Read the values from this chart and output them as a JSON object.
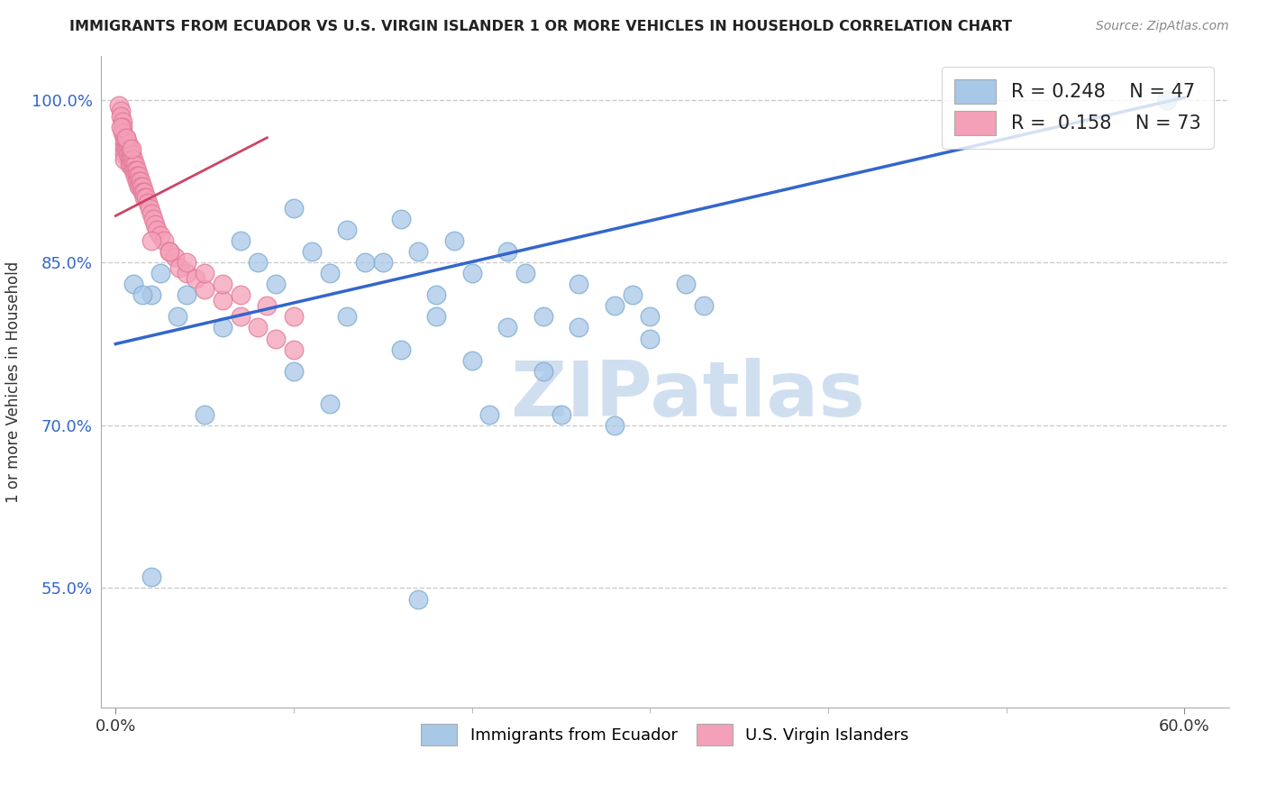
{
  "title": "IMMIGRANTS FROM ECUADOR VS U.S. VIRGIN ISLANDER 1 OR MORE VEHICLES IN HOUSEHOLD CORRELATION CHART",
  "source": "Source: ZipAtlas.com",
  "ylabel": "1 or more Vehicles in Household",
  "xlabel": "",
  "xlim_min": -0.008,
  "xlim_max": 0.625,
  "ylim_min": 0.44,
  "ylim_max": 1.04,
  "ytick_values": [
    0.55,
    0.7,
    0.85,
    1.0
  ],
  "ytick_labels": [
    "55.0%",
    "70.0%",
    "85.0%",
    "100.0%"
  ],
  "xtick_values": [
    0.0,
    0.6
  ],
  "xtick_labels": [
    "0.0%",
    "60.0%"
  ],
  "R_blue": 0.248,
  "N_blue": 47,
  "R_pink": 0.158,
  "N_pink": 73,
  "blue_dot_color": "#a8c8e8",
  "blue_dot_edge": "#7aaad0",
  "pink_dot_color": "#f4a0b8",
  "pink_dot_edge": "#e07898",
  "blue_line_color": "#3366cc",
  "pink_line_color": "#cc4466",
  "blue_line_x0": 0.0,
  "blue_line_y0": 0.775,
  "blue_line_x1": 0.6,
  "blue_line_y1": 1.002,
  "pink_line_x0": 0.0,
  "pink_line_y0": 0.893,
  "pink_line_x1": 0.085,
  "pink_line_y1": 0.965,
  "watermark_text": "ZIPatlas",
  "watermark_color": "#d0dff0",
  "legend_box_color": "#ccddee",
  "title_color": "#222222",
  "source_color": "#888888",
  "ylabel_color": "#333333",
  "ytick_color": "#3366cc",
  "xtick_color": "#333333",
  "blue_scatter_x": [
    0.01,
    0.02,
    0.025,
    0.015,
    0.04,
    0.035,
    0.07,
    0.1,
    0.13,
    0.16,
    0.19,
    0.22,
    0.08,
    0.11,
    0.14,
    0.17,
    0.2,
    0.23,
    0.09,
    0.12,
    0.15,
    0.18,
    0.26,
    0.29,
    0.32,
    0.28,
    0.24,
    0.3,
    0.33,
    0.06,
    0.13,
    0.18,
    0.22,
    0.26,
    0.3,
    0.1,
    0.16,
    0.2,
    0.24,
    0.05,
    0.12,
    0.21,
    0.25,
    0.28,
    0.02,
    0.17,
    0.59
  ],
  "blue_scatter_y": [
    0.83,
    0.82,
    0.84,
    0.82,
    0.82,
    0.8,
    0.87,
    0.9,
    0.88,
    0.89,
    0.87,
    0.86,
    0.85,
    0.86,
    0.85,
    0.86,
    0.84,
    0.84,
    0.83,
    0.84,
    0.85,
    0.82,
    0.83,
    0.82,
    0.83,
    0.81,
    0.8,
    0.8,
    0.81,
    0.79,
    0.8,
    0.8,
    0.79,
    0.79,
    0.78,
    0.75,
    0.77,
    0.76,
    0.75,
    0.71,
    0.72,
    0.71,
    0.71,
    0.7,
    0.56,
    0.54,
    1.0
  ],
  "pink_scatter_x": [
    0.002,
    0.003,
    0.003,
    0.004,
    0.004,
    0.004,
    0.005,
    0.005,
    0.005,
    0.005,
    0.005,
    0.006,
    0.006,
    0.006,
    0.007,
    0.007,
    0.007,
    0.008,
    0.008,
    0.008,
    0.008,
    0.009,
    0.009,
    0.009,
    0.01,
    0.01,
    0.01,
    0.011,
    0.011,
    0.011,
    0.012,
    0.012,
    0.012,
    0.013,
    0.013,
    0.013,
    0.014,
    0.014,
    0.015,
    0.015,
    0.016,
    0.016,
    0.017,
    0.018,
    0.019,
    0.02,
    0.021,
    0.022,
    0.023,
    0.025,
    0.027,
    0.03,
    0.033,
    0.036,
    0.04,
    0.045,
    0.05,
    0.06,
    0.07,
    0.08,
    0.09,
    0.1,
    0.02,
    0.03,
    0.04,
    0.05,
    0.06,
    0.07,
    0.085,
    0.1,
    0.003,
    0.006,
    0.009
  ],
  "pink_scatter_y": [
    0.995,
    0.99,
    0.985,
    0.98,
    0.975,
    0.97,
    0.965,
    0.96,
    0.955,
    0.95,
    0.945,
    0.965,
    0.96,
    0.955,
    0.96,
    0.955,
    0.95,
    0.955,
    0.95,
    0.945,
    0.94,
    0.95,
    0.945,
    0.94,
    0.945,
    0.94,
    0.935,
    0.94,
    0.935,
    0.93,
    0.935,
    0.93,
    0.925,
    0.93,
    0.925,
    0.92,
    0.925,
    0.92,
    0.92,
    0.915,
    0.915,
    0.91,
    0.91,
    0.905,
    0.9,
    0.895,
    0.89,
    0.885,
    0.88,
    0.875,
    0.87,
    0.86,
    0.855,
    0.845,
    0.84,
    0.835,
    0.825,
    0.815,
    0.8,
    0.79,
    0.78,
    0.77,
    0.87,
    0.86,
    0.85,
    0.84,
    0.83,
    0.82,
    0.81,
    0.8,
    0.975,
    0.965,
    0.955
  ]
}
